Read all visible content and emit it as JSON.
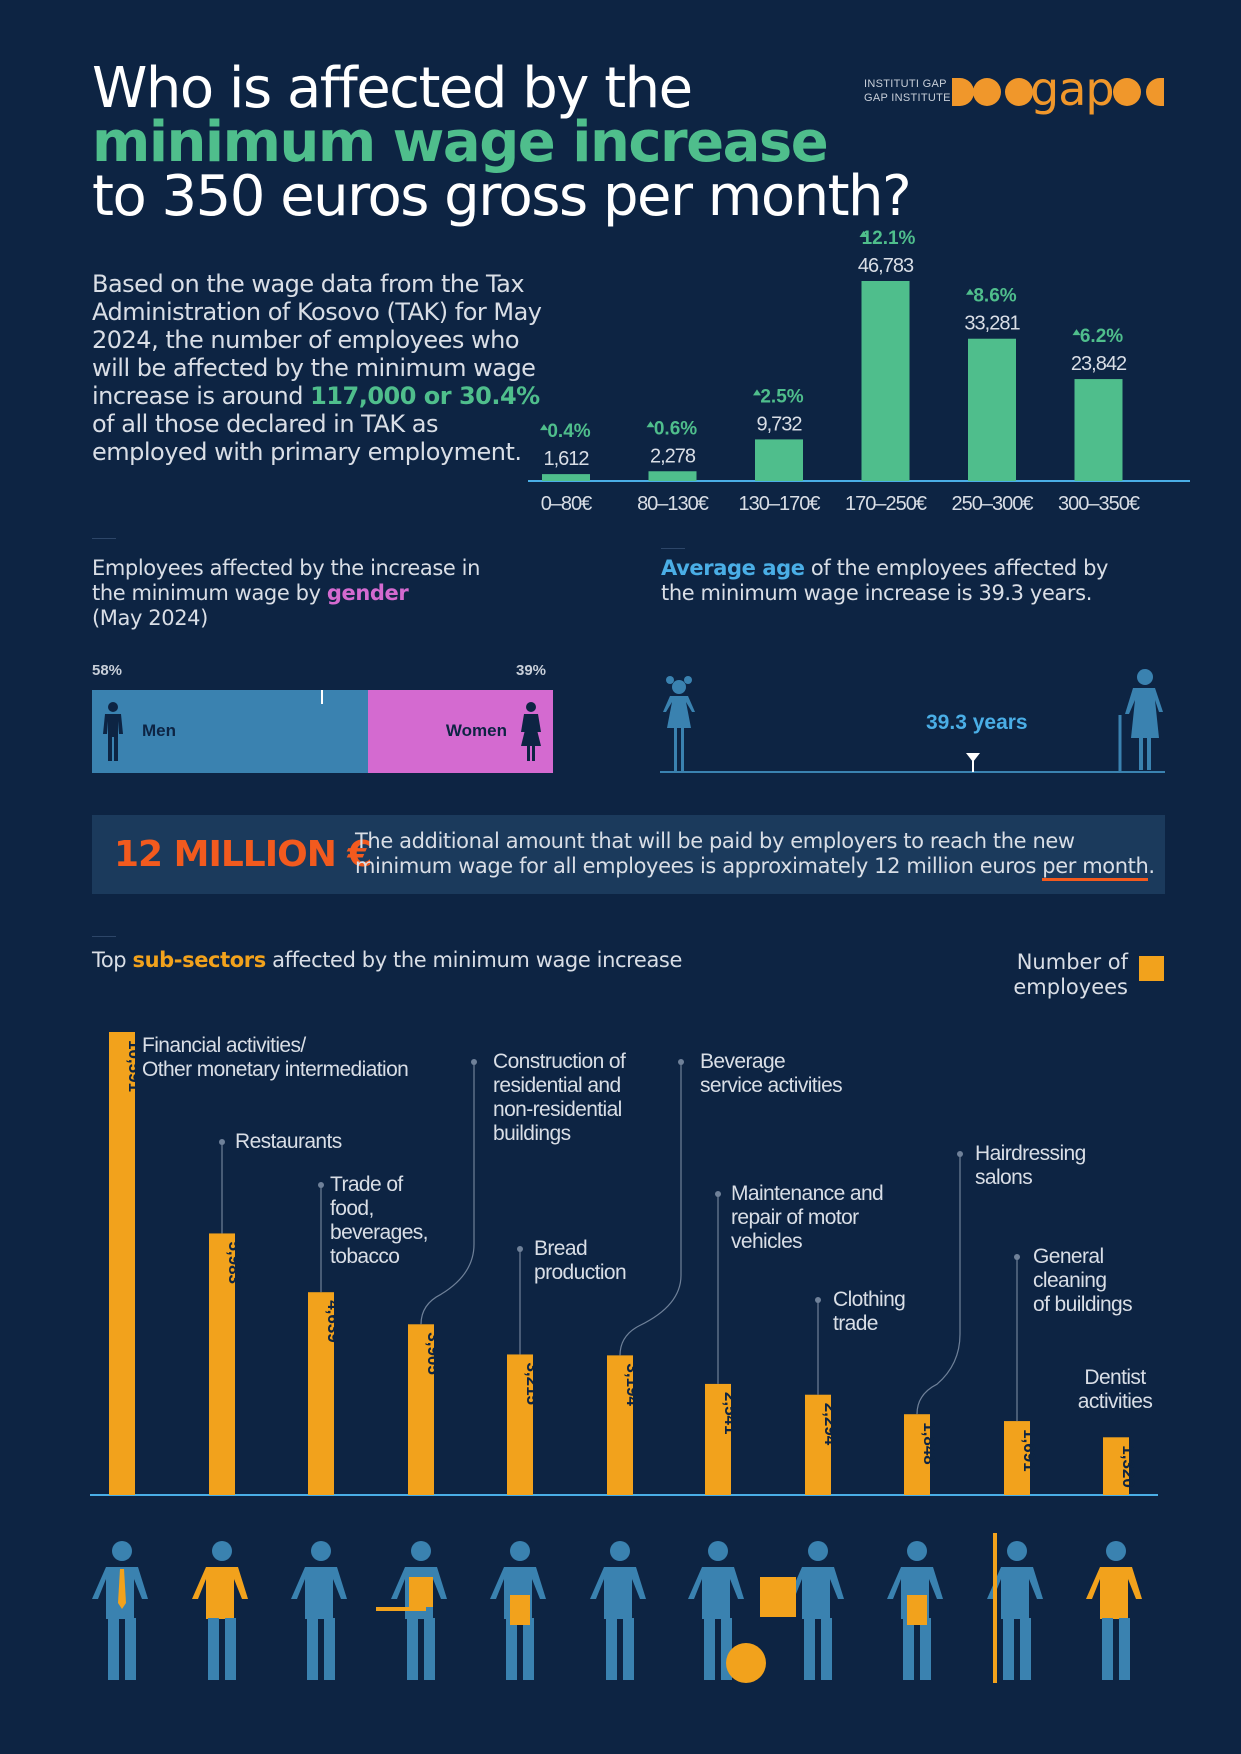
{
  "title": {
    "line1": "Who is affected by the",
    "line2": "minimum wage increase",
    "line3": "to 350 euros gross per month?"
  },
  "logo": {
    "line1": "INSTITUTI GAP",
    "line2": "GAP INSTITUTE",
    "word": "gap"
  },
  "intro": {
    "text1": "Based on the wage data from the Tax Administration of Kosovo (TAK) for May 2024, the number of employees who will be affected by the minimum wage increase is around ",
    "highlight": "117,000 or 30.4%",
    "text2": " of all those declared in TAK as employed with primary employment."
  },
  "gender": {
    "label_a": "Employees affected by the increase in the minimum wage by ",
    "label_highlight": "gender",
    "label_b": "(May 2024)",
    "men_pct": "58%",
    "women_pct": "39%",
    "men_label": "Men",
    "women_label": "Women",
    "men_value": 58,
    "women_value": 39,
    "colors": {
      "men": "#3a82b0",
      "women": "#d46ad0"
    }
  },
  "age": {
    "label_highlight": "Average age",
    "label_rest": " of the employees affected by the minimum wage increase is 39.3 years.",
    "marker": "39.3 years",
    "value": 39.3
  },
  "money": {
    "big": "12 MILLION €",
    "text1": "The additional amount that will be paid by employers to reach the new minimum wage for all employees is approximately 12 million euros ",
    "underlined": "per month",
    "text2": "."
  },
  "subsectors": {
    "label_a": "Top ",
    "label_highlight": "sub-sectors",
    "label_b": " affected by the minimum wage increase",
    "legend": "Number of employees",
    "colors": {
      "bar": "#f2a21c"
    }
  },
  "chart_data": [
    {
      "type": "bar",
      "categories": [
        "0–80€",
        "80–130€",
        "130–170€",
        "170–250€",
        "250–300€",
        "300–350€"
      ],
      "values": [
        1612,
        2278,
        9732,
        46783,
        33281,
        23842
      ],
      "value_labels": [
        "1,612",
        "2,278",
        "9,732",
        "46,783",
        "33,281",
        "23,842"
      ],
      "percent_labels": [
        "0.4%",
        "0.6%",
        "2.5%",
        "12.1%",
        "8.6%",
        "6.2%"
      ],
      "colors": {
        "bar": "#4fbe8c"
      }
    },
    {
      "type": "bar",
      "categories": [
        "Financial activities/ Other monetary intermediation",
        "Restaurants",
        "Trade of food, beverages, tobacco",
        "Construction of residential and non-residential buildings",
        "Bread production",
        "Beverage service activities",
        "Maintenance and repair of motor vehicles",
        "Clothing trade",
        "Hairdressing salons",
        "General cleaning of buildings",
        "Dentist activities"
      ],
      "category_lines": [
        [
          "Financial activities/",
          "Other monetary intermediation"
        ],
        [
          "Restaurants"
        ],
        [
          "Trade of",
          "food,",
          "beverages,",
          "tobacco"
        ],
        [
          "Construction of",
          "residential and",
          "non-residential",
          "buildings"
        ],
        [
          "Bread",
          "production"
        ],
        [
          "Beverage",
          "service activities"
        ],
        [
          "Maintenance and",
          "repair of motor",
          "vehicles"
        ],
        [
          "Clothing",
          "trade"
        ],
        [
          "Hairdressing",
          "salons"
        ],
        [
          "General",
          "cleaning",
          "of buildings"
        ],
        [
          "Dentist",
          "activities"
        ]
      ],
      "values": [
        10591,
        5983,
        4639,
        3905,
        3215,
        3194,
        2541,
        2294,
        1848,
        1691,
        1320
      ],
      "value_labels": [
        "10,591",
        "5,983",
        "4,639",
        "3,905",
        "3,215",
        "3,194",
        "2,541",
        "2,294",
        "1,848",
        "1,691",
        "1,320"
      ],
      "legend": [
        "Number of employees"
      ]
    }
  ]
}
